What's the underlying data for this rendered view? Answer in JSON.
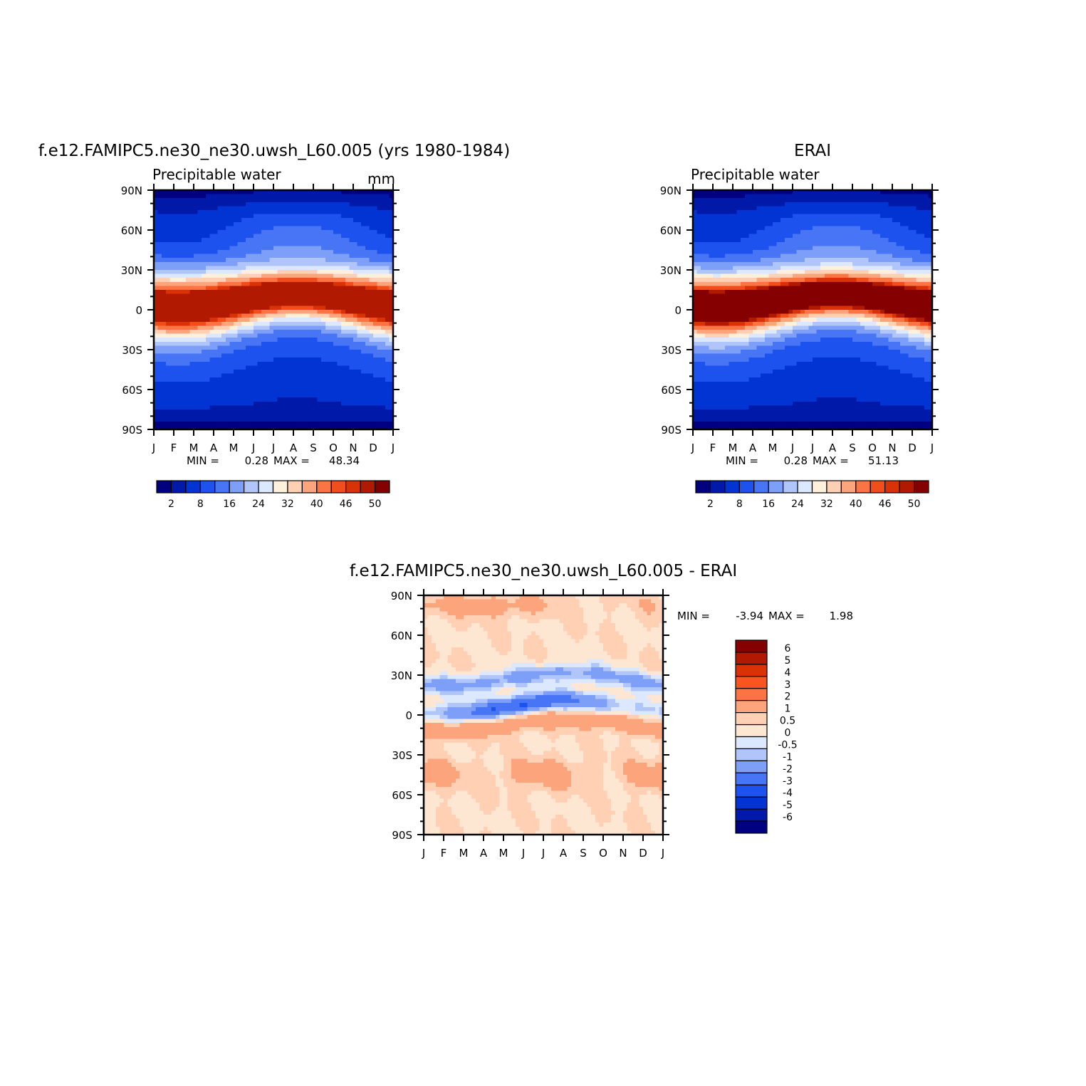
{
  "months": [
    "J",
    "F",
    "M",
    "A",
    "M",
    "J",
    "J",
    "A",
    "S",
    "O",
    "N",
    "D",
    "J"
  ],
  "lat_labels": [
    "90N",
    "60N",
    "30N",
    "0",
    "30S",
    "60S",
    "90S"
  ],
  "colors": {
    "seq": [
      "#000080",
      "#0019a8",
      "#0234d4",
      "#1d52ef",
      "#4775f5",
      "#7d9ff8",
      "#b0c6fb",
      "#dbe8fe",
      "#fff0dc",
      "#ffd0b3",
      "#fca47c",
      "#fc7443",
      "#f24e1c",
      "#d93207",
      "#b11a00",
      "#850000"
    ],
    "diff": [
      "#000080",
      "#0019a8",
      "#0234d4",
      "#1d52ef",
      "#4775f5",
      "#7d9ff8",
      "#b0c6fb",
      "#dbe8fe",
      "#fde6d2",
      "#ffd0b3",
      "#fca47c",
      "#fc7443",
      "#fa5420",
      "#d93207",
      "#b11a00",
      "#850000"
    ]
  },
  "chart_data": [
    {
      "type": "heatmap",
      "title": "f.e12.FAMIPC5.ne30_ne30.uwsh_L60.005 (yrs 1980-1984)",
      "subtitle": "Precipitable water",
      "units": "mm",
      "x": [
        "J",
        "F",
        "M",
        "A",
        "M",
        "J",
        "J",
        "A",
        "S",
        "O",
        "N",
        "D",
        "J"
      ],
      "y_ticks": [
        "90N",
        "60N",
        "30N",
        "0",
        "30S",
        "60S",
        "90S"
      ],
      "ylim": [
        -90,
        90
      ],
      "stats": {
        "min_label": "MIN =",
        "min": "0.28",
        "max_label": "MAX =",
        "max": "48.34"
      },
      "peak": 48.34,
      "levels": [
        2,
        4,
        8,
        12,
        16,
        20,
        24,
        28,
        32,
        36,
        40,
        44,
        46,
        48,
        50
      ],
      "level_labels": [
        "2",
        "8",
        "16",
        "24",
        "32",
        "40",
        "46",
        "50"
      ]
    },
    {
      "type": "heatmap",
      "title": "ERAI",
      "subtitle": "Precipitable water",
      "x": [
        "J",
        "F",
        "M",
        "A",
        "M",
        "J",
        "J",
        "A",
        "S",
        "O",
        "N",
        "D",
        "J"
      ],
      "y_ticks": [
        "90N",
        "60N",
        "30N",
        "0",
        "30S",
        "60S",
        "90S"
      ],
      "ylim": [
        -90,
        90
      ],
      "stats": {
        "min_label": "MIN =",
        "min": "0.28",
        "max_label": "MAX =",
        "max": "51.13"
      },
      "peak": 51.13,
      "levels": [
        2,
        4,
        8,
        12,
        16,
        20,
        24,
        28,
        32,
        36,
        40,
        44,
        46,
        48,
        50
      ],
      "level_labels": [
        "2",
        "8",
        "16",
        "24",
        "32",
        "40",
        "46",
        "50"
      ]
    },
    {
      "type": "heatmap",
      "title": "f.e12.FAMIPC5.ne30_ne30.uwsh_L60.005 - ERAI",
      "x": [
        "J",
        "F",
        "M",
        "A",
        "M",
        "J",
        "J",
        "A",
        "S",
        "O",
        "N",
        "D",
        "J"
      ],
      "y_ticks": [
        "90N",
        "60N",
        "30N",
        "0",
        "30S",
        "60S",
        "90S"
      ],
      "ylim": [
        -90,
        90
      ],
      "stats": {
        "min_label": "MIN =",
        "min": "-3.94",
        "max_label": "MAX =",
        "max": "1.98"
      },
      "levels": [
        -6,
        -5,
        -4,
        -3,
        -2,
        -1,
        -0.5,
        0,
        0.5,
        1,
        2,
        3,
        4,
        5,
        6
      ],
      "level_labels": [
        "6",
        "5",
        "4",
        "3",
        "2",
        "1",
        "0.5",
        "0",
        "-0.5",
        "-1",
        "-2",
        "-3",
        "-4",
        "-5",
        "-6"
      ]
    }
  ]
}
